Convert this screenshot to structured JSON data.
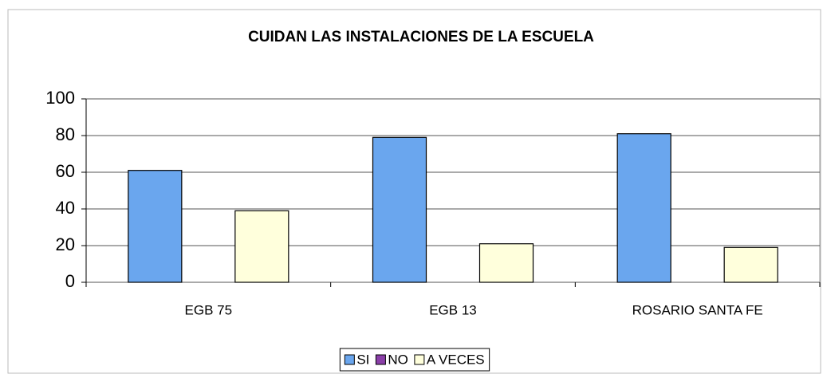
{
  "chart_data": {
    "type": "bar",
    "title": "CUIDAN LAS INSTALACIONES DE LA ESCUELA",
    "categories": [
      "EGB 75",
      "EGB 13",
      "ROSARIO SANTA FE"
    ],
    "series": [
      {
        "name": "SI",
        "color": "#6aa6ee",
        "values": [
          61,
          79,
          81
        ]
      },
      {
        "name": "NO",
        "color": "#8a3fa8",
        "values": [
          0,
          0,
          0
        ]
      },
      {
        "name": "A VECES",
        "color": "#ffffdc",
        "values": [
          39,
          21,
          19
        ]
      }
    ],
    "ylim": [
      0,
      100
    ],
    "yticks": [
      0,
      20,
      40,
      60,
      80,
      100
    ],
    "grid": true,
    "legend": "bottom"
  }
}
